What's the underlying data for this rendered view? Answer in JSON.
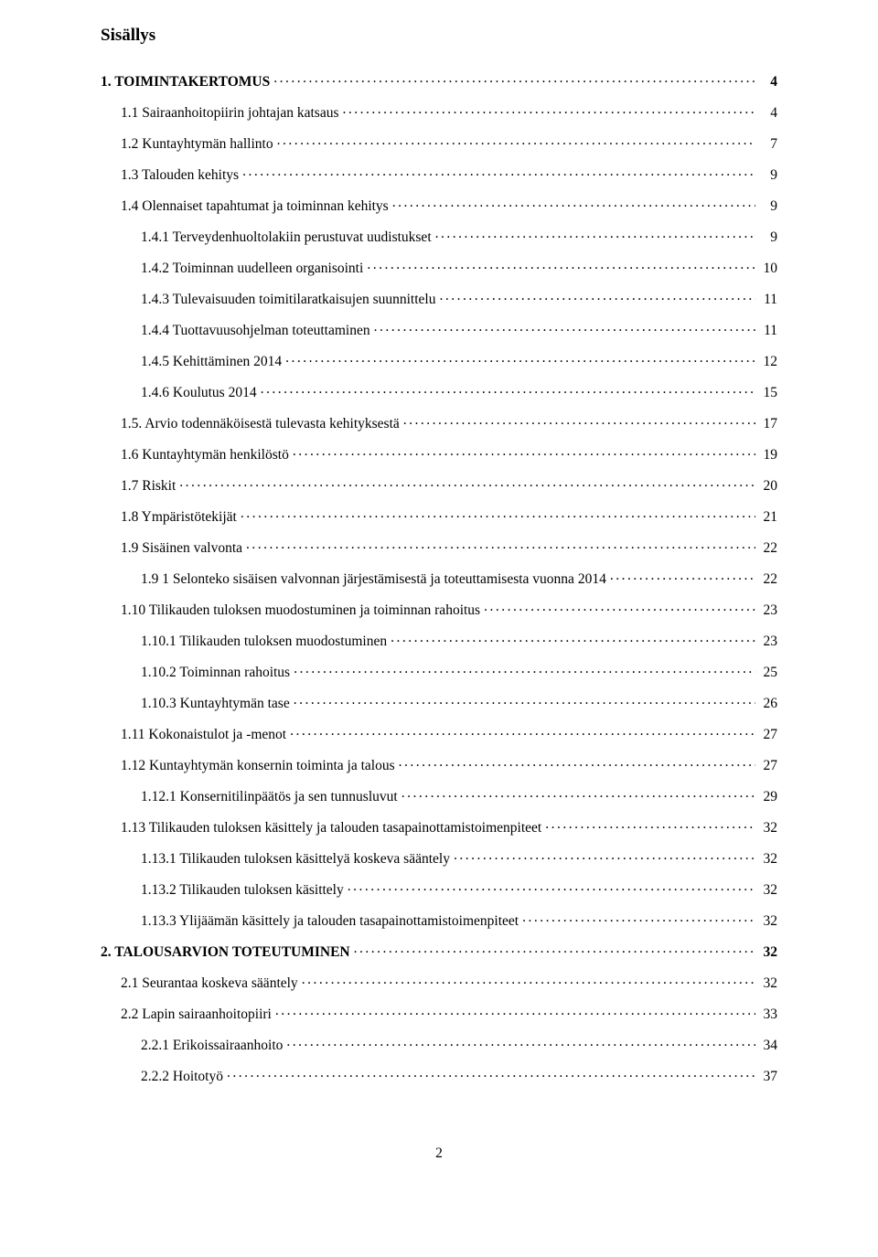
{
  "title": "Sisällys",
  "page_number": "2",
  "colors": {
    "text": "#000000",
    "background": "#ffffff"
  },
  "typography": {
    "family": "Times New Roman",
    "body_size_pt": 12,
    "title_size_pt": 14
  },
  "entries": [
    {
      "label": "1. TOIMINTAKERTOMUS",
      "page": "4",
      "indent": 0,
      "bold": true
    },
    {
      "label": "1.1 Sairaanhoitopiirin johtajan katsaus",
      "page": "4",
      "indent": 1,
      "bold": false
    },
    {
      "label": "1.2 Kuntayhtymän hallinto",
      "page": "7",
      "indent": 1,
      "bold": false
    },
    {
      "label": "1.3 Talouden kehitys",
      "page": "9",
      "indent": 1,
      "bold": false
    },
    {
      "label": "1.4 Olennaiset tapahtumat ja toiminnan kehitys",
      "page": "9",
      "indent": 1,
      "bold": false
    },
    {
      "label": "1.4.1 Terveydenhuoltolakiin perustuvat uudistukset",
      "page": "9",
      "indent": 2,
      "bold": false
    },
    {
      "label": "1.4.2 Toiminnan uudelleen organisointi",
      "page": "10",
      "indent": 2,
      "bold": false
    },
    {
      "label": "1.4.3 Tulevaisuuden toimitilaratkaisujen suunnittelu",
      "page": "11",
      "indent": 2,
      "bold": false
    },
    {
      "label": "1.4.4 Tuottavuusohjelman toteuttaminen",
      "page": "11",
      "indent": 2,
      "bold": false
    },
    {
      "label": "1.4.5 Kehittäminen 2014",
      "page": "12",
      "indent": 2,
      "bold": false
    },
    {
      "label": "1.4.6 Koulutus 2014",
      "page": "15",
      "indent": 2,
      "bold": false
    },
    {
      "label": "1.5. Arvio todennäköisestä tulevasta kehityksestä",
      "page": "17",
      "indent": 1,
      "bold": false
    },
    {
      "label": "1.6 Kuntayhtymän henkilöstö",
      "page": "19",
      "indent": 1,
      "bold": false
    },
    {
      "label": "1.7 Riskit",
      "page": "20",
      "indent": 1,
      "bold": false
    },
    {
      "label": "1.8 Ympäristötekijät",
      "page": "21",
      "indent": 1,
      "bold": false
    },
    {
      "label": "1.9 Sisäinen valvonta",
      "page": "22",
      "indent": 1,
      "bold": false
    },
    {
      "label": "1.9 1 Selonteko sisäisen valvonnan järjestämisestä ja toteuttamisesta vuonna 2014",
      "page": "22",
      "indent": 2,
      "bold": false
    },
    {
      "label": "1.10 Tilikauden tuloksen muodostuminen ja toiminnan rahoitus",
      "page": "23",
      "indent": 1,
      "bold": false
    },
    {
      "label": "1.10.1 Tilikauden tuloksen muodostuminen",
      "page": "23",
      "indent": 2,
      "bold": false
    },
    {
      "label": "1.10.2 Toiminnan rahoitus",
      "page": "25",
      "indent": 2,
      "bold": false
    },
    {
      "label": "1.10.3 Kuntayhtymän tase",
      "page": "26",
      "indent": 2,
      "bold": false
    },
    {
      "label": "1.11 Kokonaistulot ja -menot",
      "page": "27",
      "indent": 1,
      "bold": false
    },
    {
      "label": "1.12 Kuntayhtymän konsernin toiminta ja talous",
      "page": "27",
      "indent": 1,
      "bold": false
    },
    {
      "label": "1.12.1 Konsernitilinpäätös ja sen tunnusluvut",
      "page": "29",
      "indent": 2,
      "bold": false
    },
    {
      "label": "1.13 Tilikauden tuloksen käsittely ja talouden tasapainottamistoimenpiteet",
      "page": "32",
      "indent": 1,
      "bold": false
    },
    {
      "label": "1.13.1 Tilikauden tuloksen käsittelyä koskeva sääntely",
      "page": "32",
      "indent": 2,
      "bold": false
    },
    {
      "label": "1.13.2 Tilikauden tuloksen käsittely",
      "page": "32",
      "indent": 2,
      "bold": false
    },
    {
      "label": "1.13.3 Ylijäämän käsittely ja talouden tasapainottamistoimenpiteet",
      "page": "32",
      "indent": 2,
      "bold": false
    },
    {
      "label": "2. TALOUSARVION TOTEUTUMINEN",
      "page": "32",
      "indent": 0,
      "bold": true
    },
    {
      "label": "2.1 Seurantaa koskeva sääntely",
      "page": "32",
      "indent": 1,
      "bold": false
    },
    {
      "label": "2.2 Lapin sairaanhoitopiiri",
      "page": "33",
      "indent": 1,
      "bold": false
    },
    {
      "label": "2.2.1 Erikoissairaanhoito",
      "page": "34",
      "indent": 2,
      "bold": false
    },
    {
      "label": "2.2.2 Hoitotyö",
      "page": "37",
      "indent": 2,
      "bold": false
    }
  ]
}
